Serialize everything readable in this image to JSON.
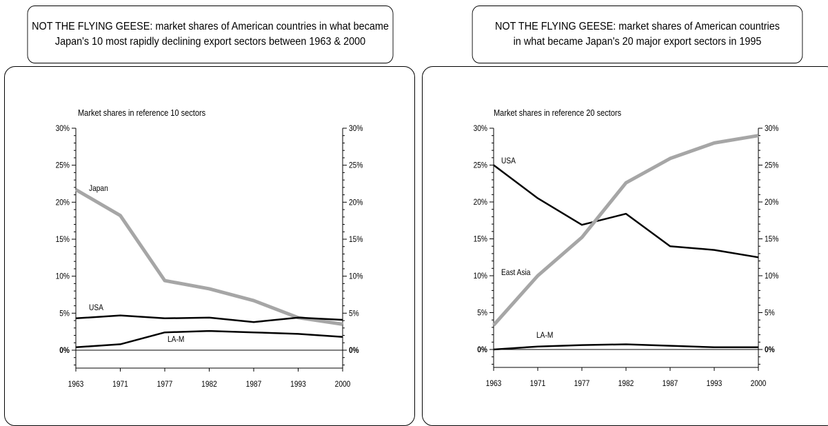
{
  "charts": [
    {
      "panel_title": "NOT THE FLYING GEESE: market shares of American countries in what became\nJapan's 10 most rapidly declining export sectors between 1963 & 2000",
      "axis_caption": "Market shares in reference 10 sectors",
      "y_ticks": [
        "30%",
        "25%",
        "20%",
        "15%",
        "10%",
        "5%",
        "0%"
      ],
      "x_ticks": [
        "1963",
        "1971",
        "1977",
        "1982",
        "1987",
        "1993",
        "2000"
      ]
    },
    {
      "panel_title": "NOT THE FLYING GEESE: market shares of American countries\nin what became Japan's 20 major export sectors in 1995",
      "axis_caption": "Market shares in reference 20 sectors",
      "y_ticks": [
        "30%",
        "25%",
        "20%",
        "15%",
        "10%",
        "5%",
        "0%"
      ],
      "x_ticks": [
        "1963",
        "1971",
        "1977",
        "1982",
        "1987",
        "1993",
        "2000"
      ]
    }
  ],
  "chart_data": [
    {
      "type": "line",
      "title": "NOT THE FLYING GEESE: market shares of American countries in what became Japan's 10 most rapidly declining export sectors between 1963 & 2000",
      "ylabel": "Market shares in reference 10 sectors",
      "x": [
        "1963",
        "1971",
        "1977",
        "1982",
        "1987",
        "1993",
        "2000"
      ],
      "ylim": [
        0,
        30
      ],
      "ylim_display": [
        -2.5,
        30
      ],
      "y_unit": "%",
      "grid": false,
      "secondary_y_axis": true,
      "series": [
        {
          "name": "Japan",
          "color": "#a6a6a6",
          "values": [
            21.7,
            18.2,
            9.4,
            8.3,
            6.7,
            4.4,
            3.5
          ]
        },
        {
          "name": "USA",
          "color": "#000000",
          "values": [
            4.3,
            4.7,
            4.3,
            4.4,
            3.8,
            4.4,
            4.1
          ]
        },
        {
          "name": "LA-M",
          "color": "#000000",
          "values": [
            0.4,
            0.8,
            2.4,
            2.6,
            2.4,
            2.2,
            1.8
          ]
        }
      ]
    },
    {
      "type": "line",
      "title": "NOT THE FLYING GEESE: market shares of American countries in what became Japan's 20 major export sectors in 1995",
      "ylabel": "Market shares in reference 20 sectors",
      "x": [
        "1963",
        "1971",
        "1977",
        "1982",
        "1987",
        "1993",
        "2000"
      ],
      "ylim": [
        0,
        30
      ],
      "ylim_display": [
        -2.5,
        30
      ],
      "y_unit": "%",
      "grid": false,
      "secondary_y_axis": true,
      "series": [
        {
          "name": "USA",
          "color": "#000000",
          "values": [
            25.0,
            20.5,
            16.9,
            18.4,
            14.0,
            13.5,
            12.5
          ]
        },
        {
          "name": "East Asia",
          "color": "#a6a6a6",
          "values": [
            3.3,
            10.0,
            15.2,
            22.6,
            25.9,
            28.0,
            29.0
          ]
        },
        {
          "name": "LA-M",
          "color": "#000000",
          "values": [
            0.0,
            0.4,
            0.6,
            0.7,
            0.5,
            0.3,
            0.3
          ]
        }
      ]
    }
  ]
}
